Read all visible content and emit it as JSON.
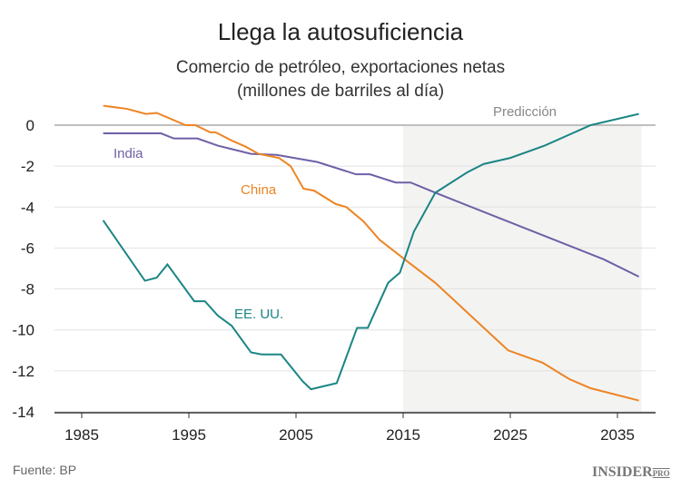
{
  "chart_data": {
    "type": "line",
    "title": "Llega la autosuficiencia",
    "subtitle": [
      "Comercio de petróleo, exportaciones netas",
      "(millones de barriles al día)"
    ],
    "xlim": [
      1983,
      2038
    ],
    "ylim": [
      -14,
      0.8
    ],
    "xticks": [
      1985,
      1995,
      2005,
      2015,
      2025,
      2035
    ],
    "yticks": [
      0,
      -2,
      -4,
      -6,
      -8,
      -10,
      -12,
      -14
    ],
    "ytick_labels": [
      "0",
      "-2",
      "-4",
      "-6",
      "-8",
      "-10",
      "-12",
      "-14"
    ],
    "grid": "horizontal",
    "shaded_region": {
      "label": "Predicción",
      "from": 2015,
      "to": 2037,
      "color": "#f3f3f1"
    },
    "series": [
      {
        "name": "India",
        "color": "#6f5fa6",
        "x": [
          1987,
          1992.4,
          1993.6,
          1995.8,
          1997.7,
          2000.8,
          2003.2,
          2007,
          2010.6,
          2011.9,
          2014.3,
          2015.7,
          2018,
          2033.7,
          2037
        ],
        "y": [
          -0.4,
          -0.4,
          -0.65,
          -0.65,
          -1.0,
          -1.4,
          -1.45,
          -1.8,
          -2.4,
          -2.4,
          -2.8,
          -2.8,
          -3.3,
          -6.55,
          -7.4
        ]
      },
      {
        "name": "China",
        "color": "#ee8424",
        "x": [
          1987,
          1989.2,
          1991,
          1992,
          1994.7,
          1995.6,
          1997,
          1997.5,
          1999,
          2000.3,
          2001.5,
          2003.4,
          2004.5,
          2005.7,
          2006.7,
          2008.7,
          2009.7,
          2011.3,
          2012.8,
          2015.5,
          2018,
          2024.8,
          2028,
          2030.5,
          2032.5,
          2037
        ],
        "y": [
          0.95,
          0.8,
          0.55,
          0.6,
          0,
          0,
          -0.35,
          -0.35,
          -0.75,
          -1.05,
          -1.4,
          -1.6,
          -2.0,
          -3.1,
          -3.2,
          -3.85,
          -4.0,
          -4.7,
          -5.6,
          -6.7,
          -7.7,
          -11.0,
          -11.6,
          -12.4,
          -12.85,
          -13.45
        ]
      },
      {
        "name": "EE. UU.",
        "color": "#1b8585",
        "x": [
          1987,
          1990.9,
          1992,
          1993,
          1995.5,
          1996.5,
          1997.7,
          1999,
          2000.8,
          2001.8,
          2003.6,
          2005.6,
          2006.4,
          2008.8,
          2010.7,
          2011.7,
          2013.6,
          2014.7,
          2016,
          2018,
          2021,
          2022.5,
          2025,
          2028.2,
          2032.5,
          2037
        ],
        "y": [
          -4.65,
          -7.6,
          -7.45,
          -6.8,
          -8.6,
          -8.6,
          -9.3,
          -9.8,
          -11.1,
          -11.2,
          -11.2,
          -12.5,
          -12.9,
          -12.6,
          -9.9,
          -9.9,
          -7.7,
          -7.2,
          -5.2,
          -3.3,
          -2.3,
          -1.9,
          -1.6,
          -1.0,
          0,
          0.55
        ]
      }
    ]
  },
  "source": "Fuente: BP",
  "logo": "INSIDER PRO"
}
